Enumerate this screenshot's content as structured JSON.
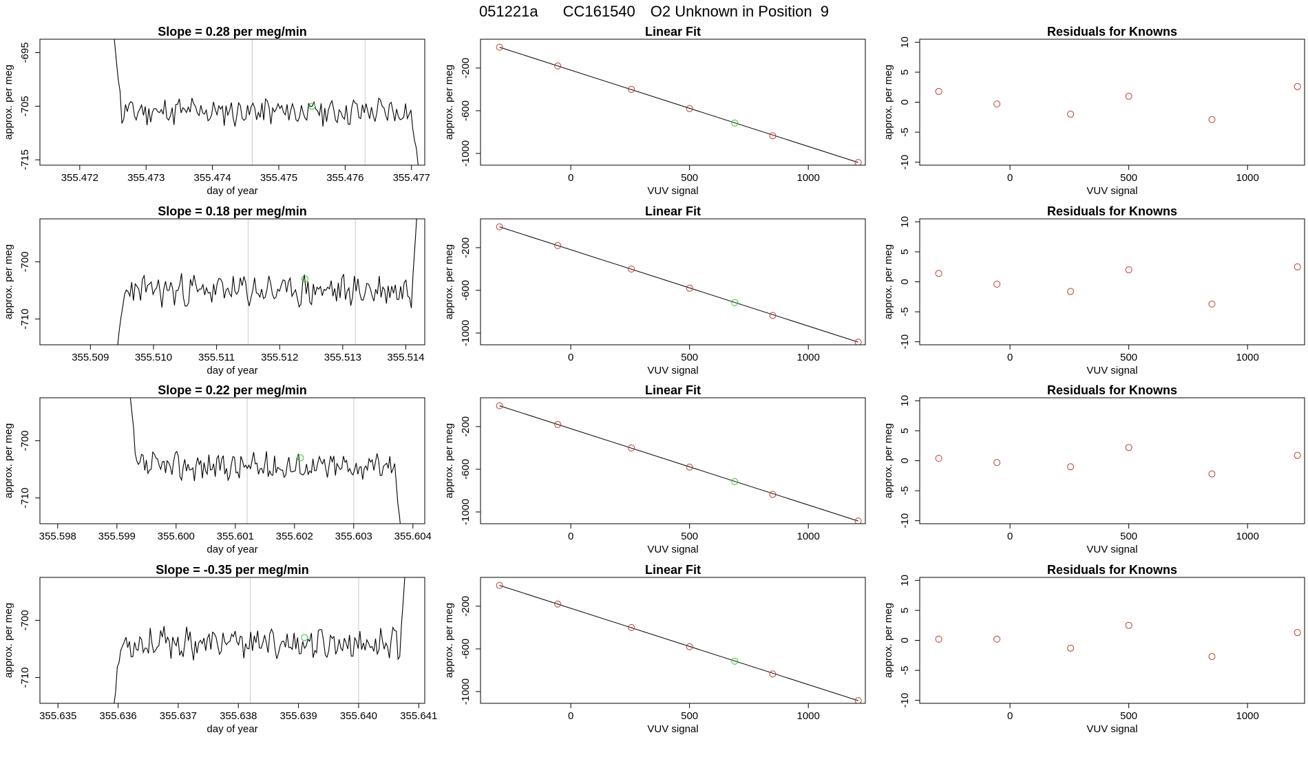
{
  "header": {
    "run_id": "051221a",
    "cylinder": "CC161540",
    "description": "O2 Unknown in Position  9"
  },
  "colors": {
    "trace": "#000000",
    "guide": "#c8c8c8",
    "known_point": "#c0392b",
    "unknown_point": "#22cc22"
  },
  "chart_data": [
    {
      "panel": "row1-col1",
      "type": "line",
      "title": "Slope =  0.28  per meg/min",
      "xlabel": "day of year",
      "ylabel": "approx. per meg",
      "xlim": [
        355.4714,
        355.4772
      ],
      "ylim": [
        -716,
        -692.5
      ],
      "xticks": [
        355.472,
        355.473,
        355.474,
        355.475,
        355.476,
        355.477
      ],
      "xtick_labels": [
        "355.472",
        "355.473",
        "355.474",
        "355.475",
        "355.476",
        "355.477"
      ],
      "yticks": [
        -695,
        -705,
        -715
      ],
      "ytick_labels": [
        "-695",
        "-705",
        "-715"
      ],
      "vlines": [
        355.4746,
        355.4763
      ],
      "trace_start": 355.4725,
      "trace_end": 355.4771,
      "trace_level": -706,
      "trace_amp": 2.2,
      "start_value": -690,
      "end_value": -716,
      "seed": 11,
      "unknown_point": {
        "x": 355.4755,
        "y": -705
      }
    },
    {
      "panel": "row1-col2",
      "type": "scatter",
      "title": "Linear Fit",
      "xlabel": "VUV signal",
      "ylabel": "approx. per meg",
      "xlim": [
        -380,
        1240
      ],
      "ylim": [
        -1110,
        70
      ],
      "xticks": [
        0,
        500,
        1000
      ],
      "xtick_labels": [
        "0",
        "500",
        "1000"
      ],
      "yticks": [
        -200,
        -600,
        -1000
      ],
      "ytick_labels": [
        "-200",
        "-600",
        "-1000"
      ],
      "fit_line": {
        "x": [
          -300,
          1210
        ],
        "y": [
          -5,
          -1085
        ]
      },
      "known_points": {
        "x": [
          -300,
          -55,
          255,
          500,
          850,
          1210
        ],
        "y": [
          -5,
          -180,
          -400,
          -580,
          -835,
          -1085
        ]
      },
      "unknown_point": {
        "x": 690,
        "y": -715
      }
    },
    {
      "panel": "row1-col3",
      "type": "scatter",
      "title": "Residuals for Knowns",
      "xlabel": "VUV signal",
      "ylabel": "approx. per meg",
      "xlim": [
        -380,
        1240
      ],
      "ylim": [
        -10.5,
        10.5
      ],
      "xticks": [
        0,
        500,
        1000
      ],
      "xtick_labels": [
        "0",
        "500",
        "1000"
      ],
      "yticks": [
        10,
        5,
        0,
        -5,
        -10
      ],
      "ytick_labels": [
        "10",
        "5",
        "0",
        "-5",
        "-10"
      ],
      "known_points": {
        "x": [
          -300,
          -55,
          255,
          500,
          850,
          1210
        ],
        "y": [
          1.8,
          -0.3,
          -2.0,
          1.0,
          -2.9,
          2.6
        ]
      }
    },
    {
      "panel": "row2-col1",
      "type": "line",
      "title": "Slope =  0.18  per meg/min",
      "xlabel": "day of year",
      "ylabel": "approx. per meg",
      "xlim": [
        355.5082,
        355.5143
      ],
      "ylim": [
        -714.5,
        -692.5
      ],
      "xticks": [
        355.509,
        355.51,
        355.511,
        355.512,
        355.513,
        355.514
      ],
      "xtick_labels": [
        "355.509",
        "355.510",
        "355.511",
        "355.512",
        "355.513",
        "355.514"
      ],
      "yticks": [
        -700,
        -710
      ],
      "ytick_labels": [
        "-700",
        "-710"
      ],
      "vlines": [
        355.5115,
        355.5132
      ],
      "trace_start": 355.5094,
      "trace_end": 355.5142,
      "trace_level": -705,
      "trace_amp": 2.3,
      "start_value": -718,
      "end_value": -688,
      "seed": 23,
      "unknown_point": {
        "x": 355.5124,
        "y": -703
      }
    },
    {
      "panel": "row2-col2",
      "type": "scatter",
      "title": "Linear Fit",
      "xlabel": "VUV signal",
      "ylabel": "approx. per meg",
      "xlim": [
        -380,
        1240
      ],
      "ylim": [
        -1110,
        70
      ],
      "xticks": [
        0,
        500,
        1000
      ],
      "xtick_labels": [
        "0",
        "500",
        "1000"
      ],
      "yticks": [
        -200,
        -600,
        -1000
      ],
      "ytick_labels": [
        "-200",
        "-600",
        "-1000"
      ],
      "fit_line": {
        "x": [
          -300,
          1210
        ],
        "y": [
          -5,
          -1085
        ]
      },
      "known_points": {
        "x": [
          -300,
          -55,
          255,
          500,
          850,
          1210
        ],
        "y": [
          -5,
          -180,
          -400,
          -580,
          -835,
          -1085
        ]
      },
      "unknown_point": {
        "x": 690,
        "y": -715
      }
    },
    {
      "panel": "row2-col3",
      "type": "scatter",
      "title": "Residuals for Knowns",
      "xlabel": "VUV signal",
      "ylabel": "approx. per meg",
      "xlim": [
        -380,
        1240
      ],
      "ylim": [
        -10.5,
        10.5
      ],
      "xticks": [
        0,
        500,
        1000
      ],
      "xtick_labels": [
        "0",
        "500",
        "1000"
      ],
      "yticks": [
        10,
        5,
        0,
        -5,
        -10
      ],
      "ytick_labels": [
        "10",
        "5",
        "0",
        "-5",
        "-10"
      ],
      "known_points": {
        "x": [
          -300,
          -55,
          255,
          500,
          850,
          1210
        ],
        "y": [
          1.4,
          -0.4,
          -1.6,
          2.0,
          -3.7,
          2.5
        ]
      }
    },
    {
      "panel": "row3-col1",
      "type": "line",
      "title": "Slope =  0.22  per meg/min",
      "xlabel": "day of year",
      "ylabel": "approx. per meg",
      "xlim": [
        355.5977,
        355.6042
      ],
      "ylim": [
        -714.5,
        -692.5
      ],
      "xticks": [
        355.598,
        355.599,
        355.6,
        355.601,
        355.602,
        355.603,
        355.604
      ],
      "xtick_labels": [
        "355.598",
        "355.599",
        "355.600",
        "355.601",
        "355.602",
        "355.603",
        "355.604"
      ],
      "yticks": [
        -700,
        -710
      ],
      "ytick_labels": [
        "-700",
        "-710"
      ],
      "vlines": [
        355.6012,
        355.603
      ],
      "trace_start": 355.5992,
      "trace_end": 355.6038,
      "trace_level": -704.5,
      "trace_amp": 2.0,
      "start_value": -690,
      "end_value": -716,
      "seed": 37,
      "unknown_point": {
        "x": 355.6021,
        "y": -703
      }
    },
    {
      "panel": "row3-col2",
      "type": "scatter",
      "title": "Linear Fit",
      "xlabel": "VUV signal",
      "ylabel": "approx. per meg",
      "xlim": [
        -380,
        1240
      ],
      "ylim": [
        -1110,
        70
      ],
      "xticks": [
        0,
        500,
        1000
      ],
      "xtick_labels": [
        "0",
        "500",
        "1000"
      ],
      "yticks": [
        -200,
        -600,
        -1000
      ],
      "ytick_labels": [
        "-200",
        "-600",
        "-1000"
      ],
      "fit_line": {
        "x": [
          -300,
          1210
        ],
        "y": [
          -5,
          -1085
        ]
      },
      "known_points": {
        "x": [
          -300,
          -55,
          255,
          500,
          850,
          1210
        ],
        "y": [
          -5,
          -180,
          -400,
          -580,
          -835,
          -1085
        ]
      },
      "unknown_point": {
        "x": 690,
        "y": -715
      }
    },
    {
      "panel": "row3-col3",
      "type": "scatter",
      "title": "Residuals for Knowns",
      "xlabel": "VUV signal",
      "ylabel": "approx. per meg",
      "xlim": [
        -380,
        1240
      ],
      "ylim": [
        -10.5,
        10.5
      ],
      "xticks": [
        0,
        500,
        1000
      ],
      "xtick_labels": [
        "0",
        "500",
        "1000"
      ],
      "yticks": [
        10,
        5,
        0,
        -5,
        -10
      ],
      "ytick_labels": [
        "10",
        "5",
        "0",
        "-5",
        "-10"
      ],
      "known_points": {
        "x": [
          -300,
          -55,
          255,
          500,
          850,
          1210
        ],
        "y": [
          0.4,
          -0.3,
          -1.0,
          2.2,
          -2.2,
          0.9
        ]
      }
    },
    {
      "panel": "row4-col1",
      "type": "line",
      "title": "Slope =  -0.35  per meg/min",
      "xlabel": "day of year",
      "ylabel": "approx. per meg",
      "xlim": [
        355.6347,
        355.6411
      ],
      "ylim": [
        -714.5,
        -692.5
      ],
      "xticks": [
        355.635,
        355.636,
        355.637,
        355.638,
        355.639,
        355.64,
        355.641
      ],
      "xtick_labels": [
        "355.635",
        "355.636",
        "355.637",
        "355.638",
        "355.639",
        "355.640",
        "355.641"
      ],
      "yticks": [
        -700,
        -710
      ],
      "ytick_labels": [
        "-700",
        "-710"
      ],
      "vlines": [
        355.6382,
        355.64
      ],
      "trace_start": 355.6359,
      "trace_end": 355.6408,
      "trace_level": -704,
      "trace_amp": 2.2,
      "start_value": -718,
      "end_value": -688,
      "seed": 53,
      "unknown_point": {
        "x": 355.6391,
        "y": -703
      }
    },
    {
      "panel": "row4-col2",
      "type": "scatter",
      "title": "Linear Fit",
      "xlabel": "VUV signal",
      "ylabel": "approx. per meg",
      "xlim": [
        -380,
        1240
      ],
      "ylim": [
        -1110,
        70
      ],
      "xticks": [
        0,
        500,
        1000
      ],
      "xtick_labels": [
        "0",
        "500",
        "1000"
      ],
      "yticks": [
        -200,
        -600,
        -1000
      ],
      "ytick_labels": [
        "-200",
        "-600",
        "-1000"
      ],
      "fit_line": {
        "x": [
          -300,
          1210
        ],
        "y": [
          -5,
          -1085
        ]
      },
      "known_points": {
        "x": [
          -300,
          -55,
          255,
          500,
          850,
          1210
        ],
        "y": [
          -5,
          -180,
          -400,
          -580,
          -835,
          -1085
        ]
      },
      "unknown_point": {
        "x": 690,
        "y": -715
      }
    },
    {
      "panel": "row4-col3",
      "type": "scatter",
      "title": "Residuals for Knowns",
      "xlabel": "VUV signal",
      "ylabel": "approx. per meg",
      "xlim": [
        -380,
        1240
      ],
      "ylim": [
        -10.5,
        10.5
      ],
      "xticks": [
        0,
        500,
        1000
      ],
      "xtick_labels": [
        "0",
        "500",
        "1000"
      ],
      "yticks": [
        10,
        5,
        0,
        -5,
        -10
      ],
      "ytick_labels": [
        "10",
        "5",
        "0",
        "-5",
        "-10"
      ],
      "known_points": {
        "x": [
          -300,
          -55,
          255,
          500,
          850,
          1210
        ],
        "y": [
          0.2,
          0.2,
          -1.3,
          2.5,
          -2.7,
          1.3
        ]
      }
    }
  ]
}
